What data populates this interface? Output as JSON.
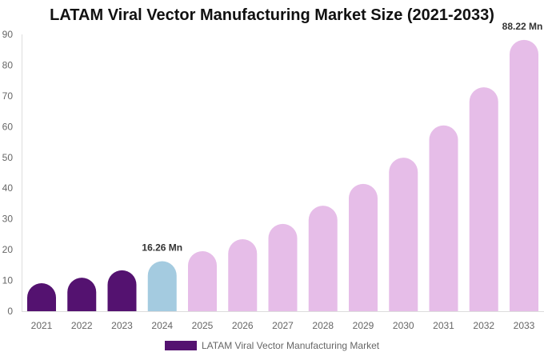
{
  "chart_data": {
    "type": "bar",
    "title": "LATAM Viral Vector Manufacturing Market Size (2021-2033)",
    "categories": [
      "2021",
      "2022",
      "2023",
      "2024",
      "2025",
      "2026",
      "2027",
      "2028",
      "2029",
      "2030",
      "2031",
      "2032",
      "2033"
    ],
    "series": [
      {
        "name": "LATAM Viral Vector Manufacturing Market",
        "values": [
          9.1,
          10.9,
          13.3,
          16.26,
          19.5,
          23.4,
          28.4,
          34.3,
          41.4,
          49.9,
          60.4,
          72.8,
          88.22
        ]
      }
    ],
    "bar_colors": [
      "#541270",
      "#541270",
      "#541270",
      "#a4cbe0",
      "#e6bde8",
      "#e6bde8",
      "#e6bde8",
      "#e6bde8",
      "#e6bde8",
      "#e6bde8",
      "#e6bde8",
      "#e6bde8",
      "#e6bde8"
    ],
    "data_labels": {
      "3": "16.26 Mn",
      "12": "88.22 Mn"
    },
    "ylim": [
      0,
      90
    ],
    "yticks": [
      0,
      10,
      20,
      30,
      40,
      50,
      60,
      70,
      80,
      90
    ],
    "grid": false,
    "legend_position": "bottom",
    "legend_color": "#541270"
  }
}
